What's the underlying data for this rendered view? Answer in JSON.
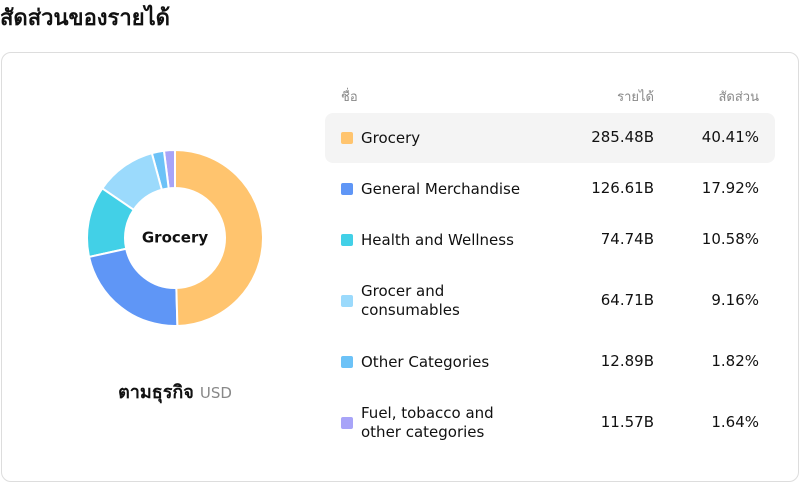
{
  "chart_data": {
    "type": "donut",
    "title": "สัดส่วนของรายได้",
    "center_label": "Grocery",
    "caption": "ตามธุรกิจ",
    "unit": "USD",
    "columns": [
      "ชื่อ",
      "รายได้",
      "สัดส่วน"
    ],
    "categories": [
      "Grocery",
      "General Merchandise",
      "Health and Wellness",
      "Grocer and consumables",
      "Other Categories",
      "Fuel, tobacco and other categories"
    ],
    "revenue": [
      285.48,
      126.61,
      74.74,
      64.71,
      12.89,
      11.57
    ],
    "revenue_labels": [
      "285.48B",
      "126.61B",
      "74.74B",
      "64.71B",
      "12.89B",
      "11.57B"
    ],
    "values": [
      40.41,
      17.92,
      10.58,
      9.16,
      1.82,
      1.64
    ],
    "value_labels": [
      "40.41%",
      "17.92%",
      "10.58%",
      "9.16%",
      "1.82%",
      "1.64%"
    ],
    "colors": [
      "#ffc46e",
      "#5f96f6",
      "#42d0e7",
      "#9bdafc",
      "#6cc2f7",
      "#a8a4f8"
    ]
  }
}
